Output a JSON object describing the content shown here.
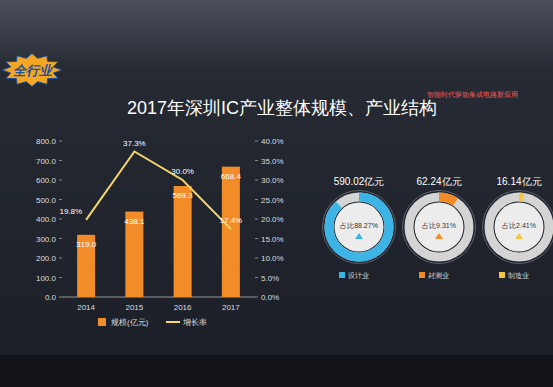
{
  "slide": {
    "badge": "全行业",
    "header": "智能时代驱动集成电路新应用"
  },
  "chart_data": [
    {
      "type": "bar",
      "title": "2017年深圳IC产业整体规模、产业结构",
      "categories": [
        "2014",
        "2015",
        "2016",
        "2017"
      ],
      "series": [
        {
          "name": "规模(亿元)",
          "type": "bar",
          "color": "#f28c28",
          "values": [
            319.0,
            438.1,
            569.3,
            668.4
          ],
          "value_labels": [
            "319.0",
            "438.1",
            "569.3",
            "668.4"
          ]
        },
        {
          "name": "增长率",
          "type": "line",
          "color": "#f5d76e",
          "axis": "y2",
          "marker": "none",
          "values": [
            19.8,
            37.3,
            30.0,
            17.4
          ],
          "value_labels": [
            "19.8%",
            "37.3%",
            "30.0%",
            "17.4%"
          ]
        }
      ],
      "ylim": [
        0,
        800
      ],
      "yticks": [
        {
          "value": 0,
          "label": "0.0"
        },
        {
          "value": 100,
          "label": "100.0"
        },
        {
          "value": 200,
          "label": "200.0"
        },
        {
          "value": 300,
          "label": "300.0"
        },
        {
          "value": 400,
          "label": "400.0"
        },
        {
          "value": 500,
          "label": "500.0"
        },
        {
          "value": 600,
          "label": "600.0"
        },
        {
          "value": 700,
          "label": "700.0"
        },
        {
          "value": 800,
          "label": "800.0"
        }
      ],
      "y2lim": [
        0,
        40
      ],
      "y2ticks": [
        {
          "value": 0,
          "label": "0.0%"
        },
        {
          "value": 5,
          "label": "5.0%"
        },
        {
          "value": 10,
          "label": "10.0%"
        },
        {
          "value": 15,
          "label": "15.0%"
        },
        {
          "value": 20,
          "label": "20.0%"
        },
        {
          "value": 25,
          "label": "25.0%"
        },
        {
          "value": 30,
          "label": "30.0%"
        },
        {
          "value": 35,
          "label": "35.0%"
        },
        {
          "value": 40,
          "label": "40.0%"
        }
      ],
      "data_labels": true,
      "legend": "bottom"
    },
    {
      "type": "donut",
      "categories": [
        "设计业",
        "封测业",
        "制造业"
      ],
      "values": [
        88.27,
        9.31,
        2.41
      ],
      "value_labels": [
        "占比88.27%",
        "占比9.31%",
        "占比2.41%"
      ],
      "amounts": [
        590.02,
        62.24,
        16.14
      ],
      "amount_labels": [
        "590.02亿元",
        "62.24亿元",
        "16.14亿元"
      ],
      "colors": [
        "#3cb4e6",
        "#f28c28",
        "#f5c542"
      ],
      "legend": "bottom"
    }
  ]
}
